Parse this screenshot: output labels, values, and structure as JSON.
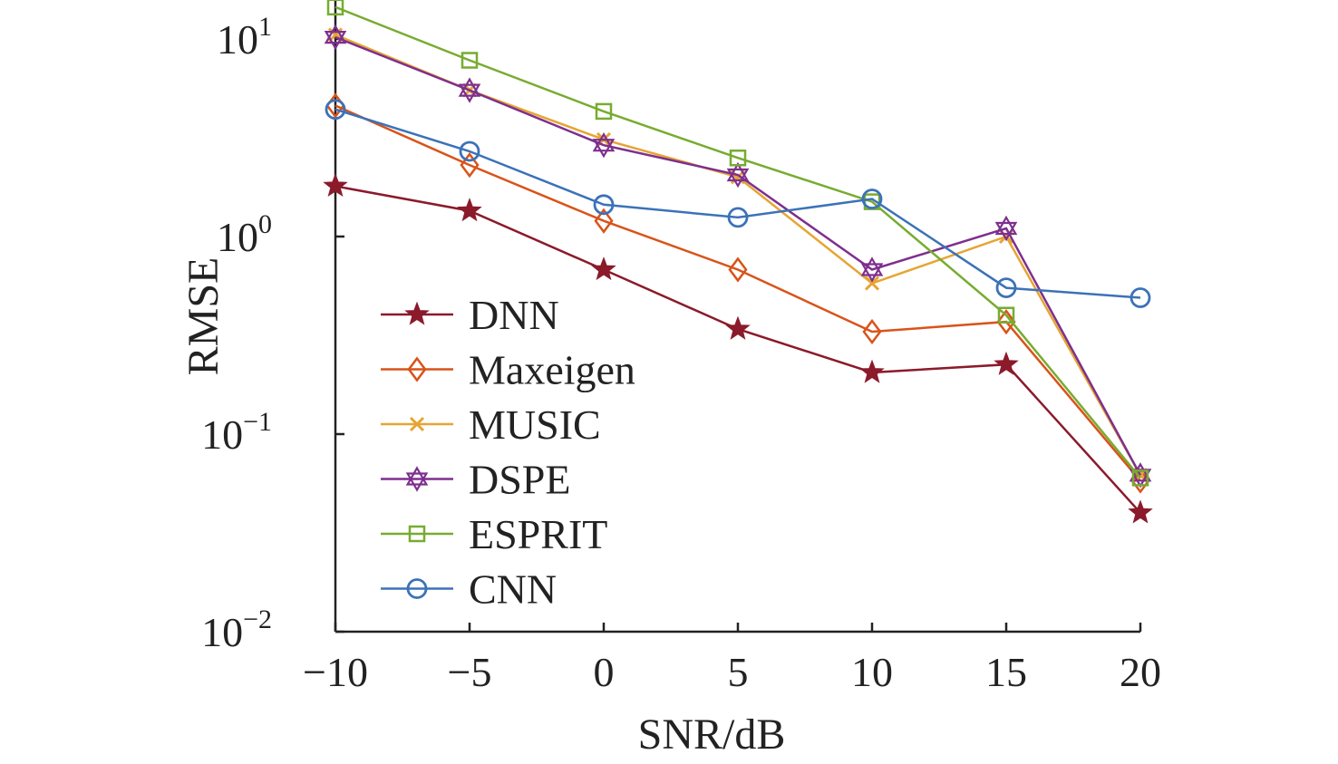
{
  "chart_data": {
    "type": "line",
    "xlabel": "SNR/dB",
    "ylabel": "RMSE",
    "yscale": "log",
    "grid": false,
    "legend_position": "lower-left",
    "x": [
      -10,
      -5,
      0,
      5,
      10,
      15,
      20
    ],
    "x_tick_labels": [
      "−10",
      "−5",
      "0",
      "5",
      "10",
      "15",
      "20"
    ],
    "y_tick_labels": [
      {
        "base": "10",
        "exp": "1",
        "value": 10
      },
      {
        "base": "10",
        "exp": "0",
        "value": 1
      },
      {
        "base": "10",
        "exp": "−1",
        "value": 0.1
      },
      {
        "base": "10",
        "exp": "−2",
        "value": 0.01
      }
    ],
    "xlim": [
      -10,
      20
    ],
    "ylim": [
      0.01,
      15
    ],
    "series": [
      {
        "name": "DNN",
        "color": "#8b1a2b",
        "marker": "star",
        "values": [
          1.8,
          1.35,
          0.68,
          0.34,
          0.205,
          0.225,
          0.04
        ]
      },
      {
        "name": "Maxeigen",
        "color": "#d95319",
        "marker": "diamond",
        "values": [
          4.6,
          2.3,
          1.2,
          0.68,
          0.33,
          0.37,
          0.058
        ]
      },
      {
        "name": "MUSIC",
        "color": "#e6a532",
        "marker": "x",
        "values": [
          10.5,
          5.5,
          3.1,
          2.0,
          0.58,
          1.0,
          0.062
        ]
      },
      {
        "name": "DSPE",
        "color": "#7e2f8e",
        "marker": "hexstar",
        "values": [
          10.2,
          5.5,
          2.9,
          2.05,
          0.68,
          1.1,
          0.062
        ]
      },
      {
        "name": "ESPRIT",
        "color": "#77ac30",
        "marker": "square",
        "values": [
          14.5,
          7.8,
          4.3,
          2.5,
          1.5,
          0.4,
          0.06
        ]
      },
      {
        "name": "CNN",
        "color": "#3b72b8",
        "marker": "circle",
        "values": [
          4.4,
          2.7,
          1.45,
          1.25,
          1.55,
          0.55,
          0.49
        ]
      }
    ]
  }
}
